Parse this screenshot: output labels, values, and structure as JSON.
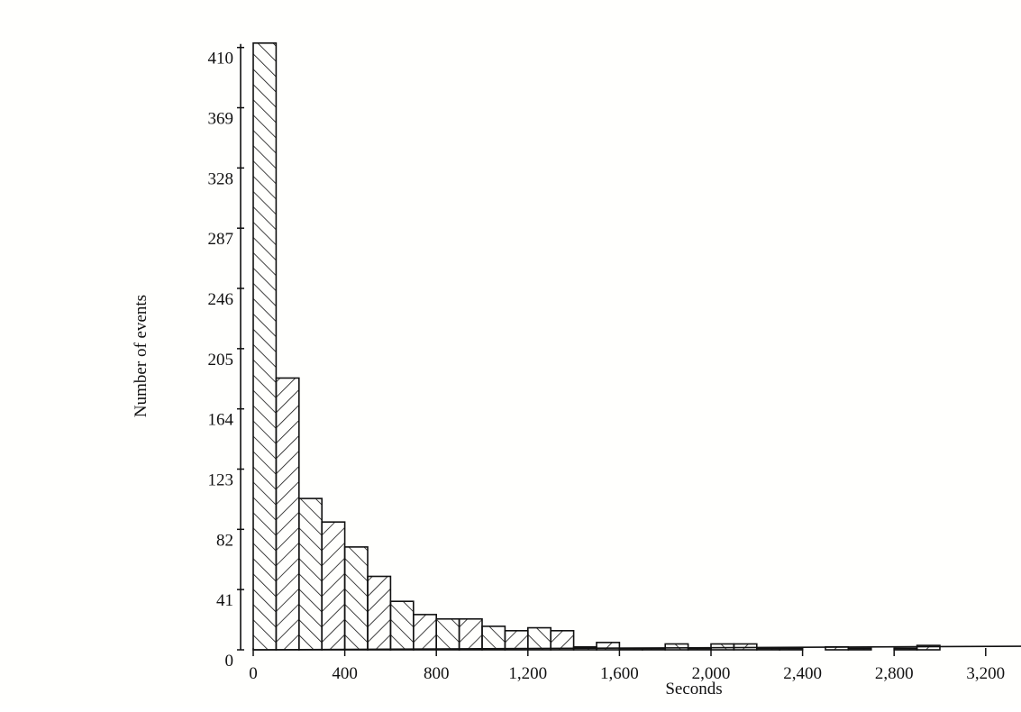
{
  "chart_data": {
    "type": "bar",
    "title": "",
    "xlabel": "Seconds",
    "ylabel": "Number of events",
    "bin_width": 100,
    "bins_start": [
      0,
      100,
      200,
      300,
      400,
      500,
      600,
      700,
      800,
      900,
      1000,
      1100,
      1200,
      1300,
      1400,
      1500,
      1600,
      1700,
      1800,
      1900,
      2000,
      2100,
      2200,
      2300,
      2400,
      2500,
      2600,
      2700,
      2800,
      2900,
      3000
    ],
    "values": [
      413,
      185,
      103,
      87,
      70,
      50,
      33,
      24,
      21,
      21,
      16,
      13,
      15,
      13,
      2,
      5,
      1,
      1,
      4,
      1,
      4,
      4,
      1,
      1,
      0,
      2,
      1,
      0,
      1,
      3,
      0
    ],
    "xlim": [
      0,
      3400
    ],
    "ylim": [
      0,
      410
    ],
    "x_ticks": [
      0,
      400,
      800,
      1200,
      1600,
      2000,
      2400,
      2800,
      3200
    ],
    "x_tick_labels": [
      "0",
      "400",
      "800",
      "1,200",
      "1,600",
      "2,000",
      "2,400",
      "2,800",
      "3,200"
    ],
    "y_ticks": [
      0,
      41,
      82,
      123,
      164,
      205,
      246,
      287,
      328,
      369,
      410
    ],
    "y_tick_labels": [
      "0",
      "41",
      "82",
      "123",
      "164",
      "205",
      "246",
      "287",
      "328",
      "369",
      "410"
    ],
    "grid": false,
    "bar_fill": "hatched, alternating diagonal direction",
    "colors": {
      "ink": "#111111",
      "paper": "#fffffd"
    }
  }
}
